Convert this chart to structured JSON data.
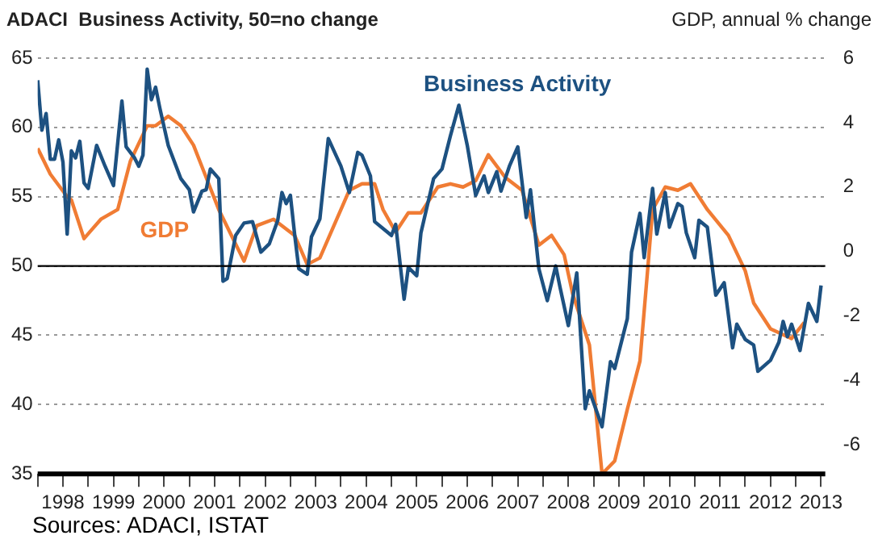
{
  "chart_data": {
    "type": "line",
    "ylabel": "ADACI  Business Activity, 50=no change",
    "y2label": "GDP, annual % change",
    "annotations": [
      "Sources: ADACI, ISTAT"
    ],
    "xlim": [
      "1998-01",
      "2013-08"
    ],
    "xticks": [
      {
        "value": "1998-01",
        "label": null
      },
      {
        "value": "1998-07",
        "label": "1998"
      },
      {
        "value": "1999-01",
        "label": null
      },
      {
        "value": "1999-07",
        "label": "1999"
      },
      {
        "value": "2000-01",
        "label": null
      },
      {
        "value": "2000-07",
        "label": "2000"
      },
      {
        "value": "2001-01",
        "label": null
      },
      {
        "value": "2001-07",
        "label": "2001"
      },
      {
        "value": "2002-01",
        "label": null
      },
      {
        "value": "2002-07",
        "label": "2002"
      },
      {
        "value": "2003-01",
        "label": null
      },
      {
        "value": "2003-07",
        "label": "2003"
      },
      {
        "value": "2004-01",
        "label": null
      },
      {
        "value": "2004-07",
        "label": "2004"
      },
      {
        "value": "2005-01",
        "label": null
      },
      {
        "value": "2005-07",
        "label": "2005"
      },
      {
        "value": "2006-01",
        "label": null
      },
      {
        "value": "2006-07",
        "label": "2006"
      },
      {
        "value": "2007-01",
        "label": null
      },
      {
        "value": "2007-07",
        "label": "2007"
      },
      {
        "value": "2008-01",
        "label": null
      },
      {
        "value": "2008-07",
        "label": "2008"
      },
      {
        "value": "2009-01",
        "label": null
      },
      {
        "value": "2009-07",
        "label": "2009"
      },
      {
        "value": "2010-01",
        "label": null
      },
      {
        "value": "2010-07",
        "label": "2010"
      },
      {
        "value": "2011-01",
        "label": null
      },
      {
        "value": "2011-07",
        "label": "2011"
      },
      {
        "value": "2012-01",
        "label": null
      },
      {
        "value": "2012-07",
        "label": "2012"
      },
      {
        "value": "2013-01",
        "label": null
      },
      {
        "value": "2013-07",
        "label": "2013"
      }
    ],
    "ylim": [
      35,
      65
    ],
    "yticks": [
      35,
      40,
      45,
      50,
      55,
      60,
      65
    ],
    "y2lim": [
      -6.9,
      6
    ],
    "y2ticks": [
      -6,
      -4,
      -2,
      0,
      2,
      4,
      6
    ],
    "grid": "y",
    "legend": false,
    "marker": "none",
    "line_style": "solid",
    "ref_lines": [
      {
        "axis": "y",
        "value": 50,
        "color": "#000000"
      }
    ],
    "series": [
      {
        "name": "Business Activity",
        "color": "#1d5181",
        "x": [
          "1998-01",
          "1998-02",
          "1998-03",
          "1998-04",
          "1998-05",
          "1998-06",
          "1998-07",
          "1998-08",
          "1998-09",
          "1998-10",
          "1998-11",
          "1998-12",
          "1999-01",
          "1999-03",
          "1999-05",
          "1999-07",
          "1999-09",
          "1999-10",
          "1999-12",
          "2000-01",
          "2000-02",
          "2000-03",
          "2000-04",
          "2000-05",
          "2000-06",
          "2000-08",
          "2000-11",
          "2001-01",
          "2001-02",
          "2001-04",
          "2001-05",
          "2001-06",
          "2001-08",
          "2001-09",
          "2001-10",
          "2001-12",
          "2002-02",
          "2002-04",
          "2002-06",
          "2002-08",
          "2002-10",
          "2002-11",
          "2002-12",
          "2003-01",
          "2003-02",
          "2003-03",
          "2003-05",
          "2003-06",
          "2003-08",
          "2003-10",
          "2004-01",
          "2004-03",
          "2004-05",
          "2004-06",
          "2004-08",
          "2004-09",
          "2005-01",
          "2005-02",
          "2005-04",
          "2005-05",
          "2005-07",
          "2005-08",
          "2005-11",
          "2006-01",
          "2006-03",
          "2006-05",
          "2006-07",
          "2006-09",
          "2006-10",
          "2006-11",
          "2006-12",
          "2007-02",
          "2007-03",
          "2007-05",
          "2007-07",
          "2007-09",
          "2007-10",
          "2007-12",
          "2008-02",
          "2008-04",
          "2008-05",
          "2008-07",
          "2008-09",
          "2008-11",
          "2008-12",
          "2009-03",
          "2009-05",
          "2009-06",
          "2009-09",
          "2009-10",
          "2009-12",
          "2010-01",
          "2010-03",
          "2010-04",
          "2010-06",
          "2010-07",
          "2010-09",
          "2010-10",
          "2010-11",
          "2011-01",
          "2011-02",
          "2011-04",
          "2011-06",
          "2011-08",
          "2011-10",
          "2011-11",
          "2012-01",
          "2012-03",
          "2012-04",
          "2012-07",
          "2012-09",
          "2012-10",
          "2012-11",
          "2012-12",
          "2013-02",
          "2013-04",
          "2013-06",
          "2013-07"
        ],
        "values": [
          63.4,
          59.8,
          61.0,
          57.7,
          57.7,
          59.1,
          57.5,
          52.3,
          58.3,
          57.8,
          59.0,
          56.0,
          55.6,
          58.7,
          57.2,
          55.8,
          61.9,
          58.6,
          57.8,
          57.2,
          58.0,
          64.2,
          62.0,
          62.9,
          61.4,
          58.7,
          56.3,
          55.5,
          53.9,
          55.4,
          55.5,
          57.0,
          56.3,
          48.9,
          49.1,
          52.2,
          53.1,
          53.2,
          51.0,
          51.6,
          53.3,
          55.3,
          54.5,
          55.1,
          52.3,
          49.8,
          49.4,
          52.1,
          53.4,
          59.2,
          57.2,
          55.3,
          58.2,
          58.0,
          56.5,
          53.2,
          52.2,
          53.0,
          47.6,
          49.9,
          49.3,
          52.4,
          56.3,
          57.0,
          59.4,
          61.6,
          58.7,
          55.1,
          55.8,
          56.5,
          55.3,
          56.8,
          55.4,
          57.2,
          58.6,
          53.5,
          55.5,
          49.8,
          47.5,
          50.0,
          48.5,
          45.7,
          49.5,
          39.7,
          41.0,
          38.4,
          43.1,
          42.6,
          46.2,
          51.0,
          53.8,
          50.6,
          55.6,
          52.3,
          55.3,
          52.8,
          54.5,
          54.3,
          52.4,
          50.6,
          53.3,
          52.8,
          47.9,
          48.8,
          44.1,
          45.8,
          44.7,
          44.3,
          42.4,
          43.2,
          44.5,
          46.0,
          44.9,
          45.8,
          43.9,
          47.3,
          46.0,
          48.6
        ]
      },
      {
        "name": "GDP",
        "color": "#f07c34",
        "axis": "y2",
        "x": [
          "1998-01",
          "1998-04",
          "1998-08",
          "1998-09",
          "1998-12",
          "1999-02",
          "1999-04",
          "1999-08",
          "1999-11",
          "2000-03",
          "2000-05",
          "2000-08",
          "2000-11",
          "2001-02",
          "2001-05",
          "2001-08",
          "2001-11",
          "2002-02",
          "2002-05",
          "2002-09",
          "2002-12",
          "2003-02",
          "2003-05",
          "2003-08",
          "2003-12",
          "2004-03",
          "2004-06",
          "2004-09",
          "2004-11",
          "2005-02",
          "2005-05",
          "2005-08",
          "2005-12",
          "2006-03",
          "2006-06",
          "2006-09",
          "2006-12",
          "2007-04",
          "2007-08",
          "2007-12",
          "2008-03",
          "2008-06",
          "2008-08",
          "2008-12",
          "2009-03",
          "2009-06",
          "2009-09",
          "2009-12",
          "2010-02",
          "2010-03",
          "2010-06",
          "2010-09",
          "2010-12",
          "2011-04",
          "2011-09",
          "2012-01",
          "2012-03",
          "2012-07",
          "2012-12",
          "2013-03"
        ],
        "values": [
          3.2,
          2.4,
          1.7,
          1.6,
          0.4,
          0.7,
          1.0,
          1.3,
          2.8,
          3.9,
          3.9,
          4.2,
          3.9,
          3.3,
          2.3,
          1.3,
          0.5,
          -0.3,
          0.8,
          1.0,
          0.7,
          0.5,
          -0.4,
          -0.2,
          1.0,
          1.9,
          2.1,
          2.1,
          1.3,
          0.6,
          1.2,
          1.2,
          2.0,
          2.1,
          2.0,
          2.2,
          3.0,
          2.3,
          1.9,
          0.2,
          0.5,
          -0.1,
          -1.3,
          -2.9,
          -6.9,
          -6.5,
          -4.9,
          -3.4,
          -0.3,
          1.3,
          2.0,
          1.9,
          2.1,
          1.3,
          0.5,
          -0.6,
          -1.6,
          -2.4,
          -2.7,
          -2.2
        ]
      }
    ]
  }
}
